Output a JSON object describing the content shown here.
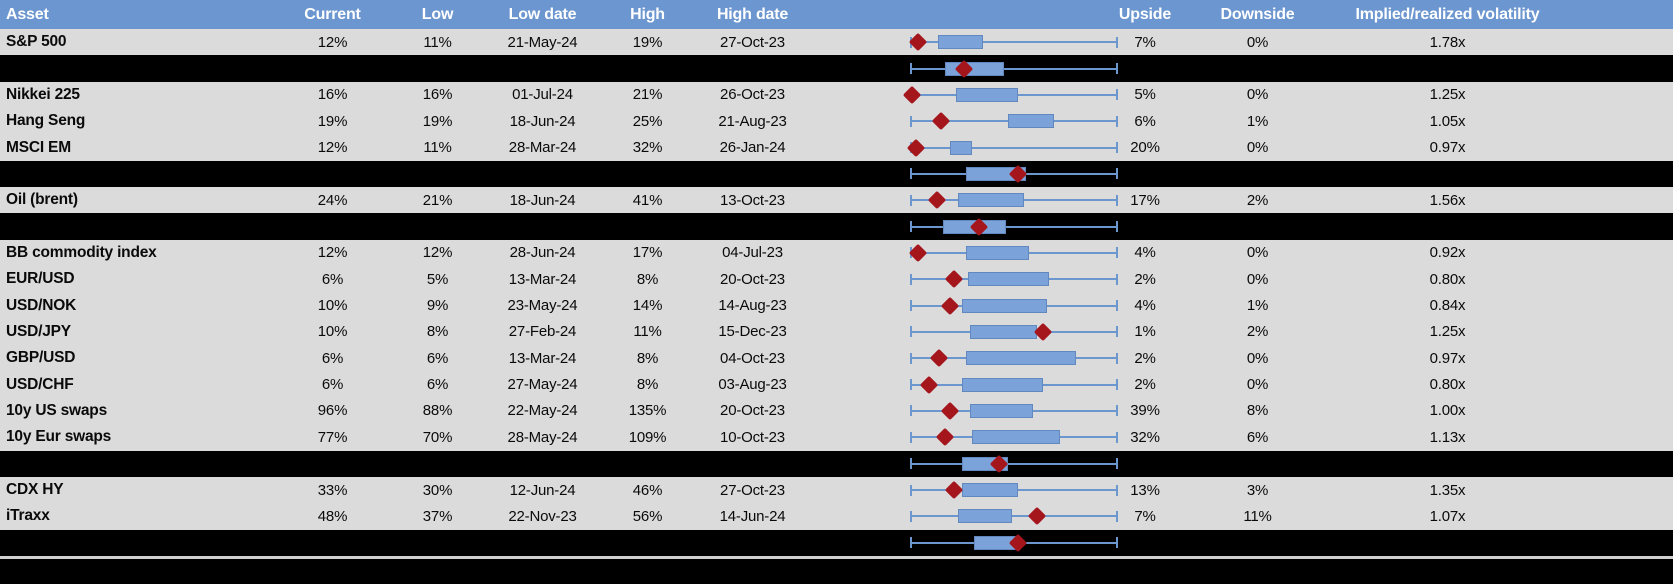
{
  "colors": {
    "header_bg": "#6C96CF",
    "row_bg": "#DBDBDB",
    "separator_bg": "#000000",
    "whisker": "#6C96CE",
    "box_fill": "#7BA3D9",
    "box_border": "#6288C0",
    "marker": "#A4151C",
    "divider_line": "#CFCFCF"
  },
  "chart_data": {
    "type": "table",
    "description": "Asset volatility table with embedded box-plot (range) charts; red diamond marks current level; box/diamond positions are % across the plot track",
    "legend_position": "none",
    "grid": false,
    "columns": {
      "asset": "Asset",
      "current": "Current",
      "low": "Low",
      "low_date": "Low date",
      "high": "High",
      "high_date": "High date",
      "upside": "Upside",
      "downside": "Downside",
      "vol": "Implied/realized volatility"
    },
    "rows": [
      {
        "type": "data",
        "asset": "S&P 500",
        "current": "12%",
        "low": "11%",
        "low_date": "21-May-24",
        "high": "19%",
        "high_date": "27-Oct-23",
        "upside": "7%",
        "downside": "0%",
        "vol": "1.78x",
        "plot": {
          "box_start": 13.5,
          "box_end": 35,
          "diamond": 4
        }
      },
      {
        "type": "sep",
        "plot": {
          "box_start": 17,
          "box_end": 45,
          "diamond": 26
        }
      },
      {
        "type": "data",
        "asset": "Nikkei 225",
        "current": "16%",
        "low": "16%",
        "low_date": "01-Jul-24",
        "high": "21%",
        "high_date": "26-Oct-23",
        "upside": "5%",
        "downside": "0%",
        "vol": "1.25x",
        "plot": {
          "box_start": 22,
          "box_end": 52,
          "diamond": 1
        }
      },
      {
        "type": "data",
        "asset": "Hang Seng",
        "current": "19%",
        "low": "19%",
        "low_date": "18-Jun-24",
        "high": "25%",
        "high_date": "21-Aug-23",
        "upside": "6%",
        "downside": "1%",
        "vol": "1.05x",
        "plot": {
          "box_start": 47,
          "box_end": 69,
          "diamond": 15
        }
      },
      {
        "type": "data",
        "asset": "MSCI EM",
        "current": "12%",
        "low": "11%",
        "low_date": "28-Mar-24",
        "high": "32%",
        "high_date": "26-Jan-24",
        "upside": "20%",
        "downside": "0%",
        "vol": "0.97x",
        "plot": {
          "box_start": 19,
          "box_end": 30,
          "diamond": 3
        }
      },
      {
        "type": "sep",
        "plot": {
          "box_start": 27,
          "box_end": 56,
          "diamond": 52
        }
      },
      {
        "type": "data",
        "asset": "Oil (brent)",
        "current": "24%",
        "low": "21%",
        "low_date": "18-Jun-24",
        "high": "41%",
        "high_date": "13-Oct-23",
        "upside": "17%",
        "downside": "2%",
        "vol": "1.56x",
        "plot": {
          "box_start": 23,
          "box_end": 55,
          "diamond": 13
        }
      },
      {
        "type": "sep",
        "plot": {
          "box_start": 16,
          "box_end": 46,
          "diamond": 33
        }
      },
      {
        "type": "data",
        "asset": "BB commodity index",
        "current": "12%",
        "low": "12%",
        "low_date": "28-Jun-24",
        "high": "17%",
        "high_date": "04-Jul-23",
        "upside": "4%",
        "downside": "0%",
        "vol": "0.92x",
        "plot": {
          "box_start": 27,
          "box_end": 57,
          "diamond": 4
        }
      },
      {
        "type": "data",
        "asset": "EUR/USD",
        "current": "6%",
        "low": "5%",
        "low_date": "13-Mar-24",
        "high": "8%",
        "high_date": "20-Oct-23",
        "upside": "2%",
        "downside": "0%",
        "vol": "0.80x",
        "plot": {
          "box_start": 28,
          "box_end": 67,
          "diamond": 21
        }
      },
      {
        "type": "data",
        "asset": "USD/NOK",
        "current": "10%",
        "low": "9%",
        "low_date": "23-May-24",
        "high": "14%",
        "high_date": "14-Aug-23",
        "upside": "4%",
        "downside": "1%",
        "vol": "0.84x",
        "plot": {
          "box_start": 25,
          "box_end": 66,
          "diamond": 19
        }
      },
      {
        "type": "data",
        "asset": "USD/JPY",
        "current": "10%",
        "low": "8%",
        "low_date": "27-Feb-24",
        "high": "11%",
        "high_date": "15-Dec-23",
        "upside": "1%",
        "downside": "2%",
        "vol": "1.25x",
        "plot": {
          "box_start": 29,
          "box_end": 61,
          "diamond": 64
        }
      },
      {
        "type": "data",
        "asset": "GBP/USD",
        "current": "6%",
        "low": "6%",
        "low_date": "13-Mar-24",
        "high": "8%",
        "high_date": "04-Oct-23",
        "upside": "2%",
        "downside": "0%",
        "vol": "0.97x",
        "plot": {
          "box_start": 27,
          "box_end": 80,
          "diamond": 14
        }
      },
      {
        "type": "data",
        "asset": "USD/CHF",
        "current": "6%",
        "low": "6%",
        "low_date": "27-May-24",
        "high": "8%",
        "high_date": "03-Aug-23",
        "upside": "2%",
        "downside": "0%",
        "vol": "0.80x",
        "plot": {
          "box_start": 25,
          "box_end": 64,
          "diamond": 9
        }
      },
      {
        "type": "data",
        "asset": "10y US swaps",
        "current": "96%",
        "low": "88%",
        "low_date": "22-May-24",
        "high": "135%",
        "high_date": "20-Oct-23",
        "upside": "39%",
        "downside": "8%",
        "vol": "1.00x",
        "plot": {
          "box_start": 29,
          "box_end": 59,
          "diamond": 19
        }
      },
      {
        "type": "data",
        "asset": "10y Eur swaps",
        "current": "77%",
        "low": "70%",
        "low_date": "28-May-24",
        "high": "109%",
        "high_date": "10-Oct-23",
        "upside": "32%",
        "downside": "6%",
        "vol": "1.13x",
        "plot": {
          "box_start": 30,
          "box_end": 72,
          "diamond": 17
        }
      },
      {
        "type": "sep",
        "plot": {
          "box_start": 25,
          "box_end": 47,
          "diamond": 43
        }
      },
      {
        "type": "data",
        "asset": "CDX HY",
        "current": "33%",
        "low": "30%",
        "low_date": "12-Jun-24",
        "high": "46%",
        "high_date": "27-Oct-23",
        "upside": "13%",
        "downside": "3%",
        "vol": "1.35x",
        "plot": {
          "box_start": 25,
          "box_end": 52,
          "diamond": 21
        }
      },
      {
        "type": "data",
        "asset": "iTraxx",
        "current": "48%",
        "low": "37%",
        "low_date": "22-Nov-23",
        "high": "56%",
        "high_date": "14-Jun-24",
        "upside": "7%",
        "downside": "11%",
        "vol": "1.07x",
        "plot": {
          "box_start": 23,
          "box_end": 49,
          "diamond": 61
        }
      },
      {
        "type": "sep",
        "plot": {
          "box_start": 31,
          "box_end": 53,
          "diamond": 52
        }
      }
    ]
  }
}
